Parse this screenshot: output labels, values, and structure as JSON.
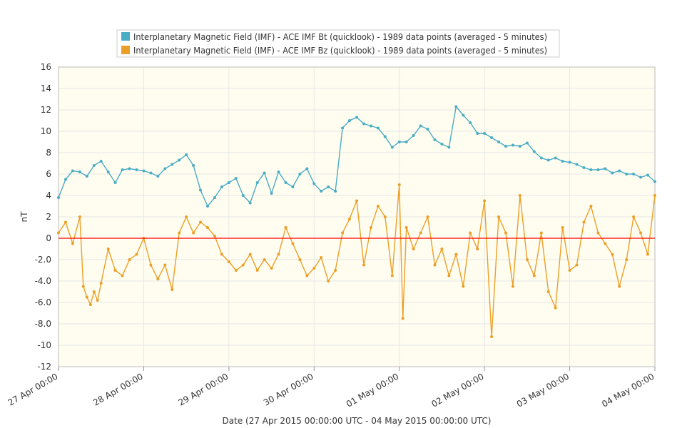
{
  "chart_data": {
    "type": "line",
    "title": "",
    "xlabel": "Date (27 Apr 2015 00:00:00 UTC - 04 May 2015 00:00:00 UTC)",
    "ylabel": "nT",
    "ylim": [
      -12,
      16
    ],
    "xlim_hours": [
      0,
      168
    ],
    "y_ticks": [
      "16",
      "14",
      "12",
      "10",
      "8",
      "6",
      "4",
      "2",
      "0",
      "-2.0",
      "-4.0",
      "-6.0",
      "-8.0",
      "-10",
      "-12"
    ],
    "x_ticks": [
      "27 Apr 00:00",
      "28 Apr 00:00",
      "29 Apr 00:00",
      "30 Apr 00:00",
      "01 May 00:00",
      "02 May 00:00",
      "03 May 00:00",
      "04 May 00:00"
    ],
    "grid": true,
    "legend_position": "top",
    "reference_line": {
      "y": 0,
      "color": "#ff0000"
    },
    "colors": {
      "plot_background": "#fffdf0",
      "grid": "#e6e6e6",
      "frame": "#bbbbbb"
    },
    "series": [
      {
        "name": "Interplanetary Magnetic Field (IMF) - ACE IMF Bt (quicklook) - 1989 data points (averaged - 5 minutes)",
        "color": "#4bacc6",
        "x_hours": [
          0,
          2,
          4,
          6,
          8,
          10,
          12,
          14,
          16,
          18,
          20,
          22,
          24,
          26,
          28,
          30,
          32,
          34,
          36,
          38,
          40,
          42,
          44,
          46,
          48,
          50,
          52,
          54,
          56,
          58,
          60,
          62,
          64,
          66,
          68,
          70,
          72,
          74,
          76,
          78,
          80,
          82,
          84,
          86,
          88,
          90,
          92,
          94,
          96,
          98,
          100,
          102,
          104,
          106,
          108,
          110,
          112,
          114,
          116,
          118,
          120,
          122,
          124,
          126,
          128,
          130,
          132,
          134,
          136,
          138,
          140,
          142,
          144,
          146,
          148,
          150,
          152,
          154,
          156,
          158,
          160,
          162,
          164,
          166,
          168
        ],
        "values": [
          3.8,
          5.5,
          6.3,
          6.2,
          5.8,
          6.8,
          7.2,
          6.2,
          5.2,
          6.4,
          6.5,
          6.4,
          6.3,
          6.1,
          5.8,
          6.5,
          6.9,
          7.3,
          7.8,
          6.8,
          4.5,
          3.0,
          3.8,
          4.8,
          5.2,
          5.6,
          4.0,
          3.3,
          5.2,
          6.1,
          4.2,
          6.2,
          5.2,
          4.8,
          6.0,
          6.5,
          5.1,
          4.4,
          4.8,
          4.4,
          10.3,
          11.0,
          11.3,
          10.7,
          10.5,
          10.3,
          9.5,
          8.5,
          9.0,
          9.0,
          9.6,
          10.5,
          10.2,
          9.2,
          8.8,
          8.5,
          12.3,
          11.5,
          10.8,
          9.8,
          9.8,
          9.4,
          9.0,
          8.6,
          8.7,
          8.6,
          8.9,
          8.1,
          7.5,
          7.3,
          7.5,
          7.2,
          7.1,
          6.9,
          6.6,
          6.4,
          6.4,
          6.5,
          6.1,
          6.3,
          6.0,
          6.0,
          5.7,
          5.9,
          5.3
        ]
      },
      {
        "name": "Interplanetary Magnetic Field (IMF) - ACE IMF Bz (quicklook) - 1989 data points (averaged - 5 minutes)",
        "color": "#ec9f27",
        "x_hours": [
          0,
          2,
          4,
          6,
          7,
          8,
          9,
          10,
          11,
          12,
          14,
          16,
          18,
          20,
          22,
          24,
          26,
          28,
          30,
          32,
          34,
          36,
          38,
          40,
          42,
          44,
          46,
          48,
          50,
          52,
          54,
          56,
          58,
          60,
          62,
          64,
          66,
          68,
          70,
          72,
          74,
          76,
          78,
          80,
          82,
          84,
          86,
          88,
          90,
          92,
          94,
          96,
          97,
          98,
          100,
          102,
          104,
          106,
          108,
          110,
          112,
          114,
          116,
          118,
          120,
          122,
          124,
          126,
          128,
          130,
          132,
          134,
          136,
          138,
          140,
          142,
          144,
          146,
          148,
          150,
          152,
          154,
          156,
          158,
          160,
          162,
          164,
          166,
          168
        ],
        "values": [
          0.5,
          1.5,
          -0.5,
          2.0,
          -4.5,
          -5.5,
          -6.2,
          -5.0,
          -5.8,
          -4.2,
          -1.0,
          -3.0,
          -3.5,
          -2.0,
          -1.5,
          0.0,
          -2.5,
          -3.8,
          -2.5,
          -4.8,
          0.5,
          2.0,
          0.5,
          1.5,
          1.0,
          0.2,
          -1.5,
          -2.2,
          -3.0,
          -2.5,
          -1.5,
          -3.0,
          -2.0,
          -2.8,
          -1.5,
          1.0,
          -0.5,
          -2.0,
          -3.5,
          -2.8,
          -1.8,
          -4.0,
          -3.0,
          0.5,
          1.8,
          3.5,
          -2.5,
          1.0,
          3.0,
          2.0,
          -3.5,
          5.0,
          -7.5,
          1.0,
          -1.0,
          0.5,
          2.0,
          -2.5,
          -1.0,
          -3.5,
          -1.5,
          -4.5,
          0.5,
          -1.0,
          3.5,
          -9.2,
          2.0,
          0.5,
          -4.5,
          4.0,
          -2.0,
          -3.5,
          0.5,
          -5.0,
          -6.5,
          1.0,
          -3.0,
          -2.5,
          1.5,
          3.0,
          0.5,
          -0.5,
          -1.5,
          -4.5,
          -2.0,
          2.0,
          0.5,
          -1.5,
          4.0
        ]
      }
    ]
  }
}
